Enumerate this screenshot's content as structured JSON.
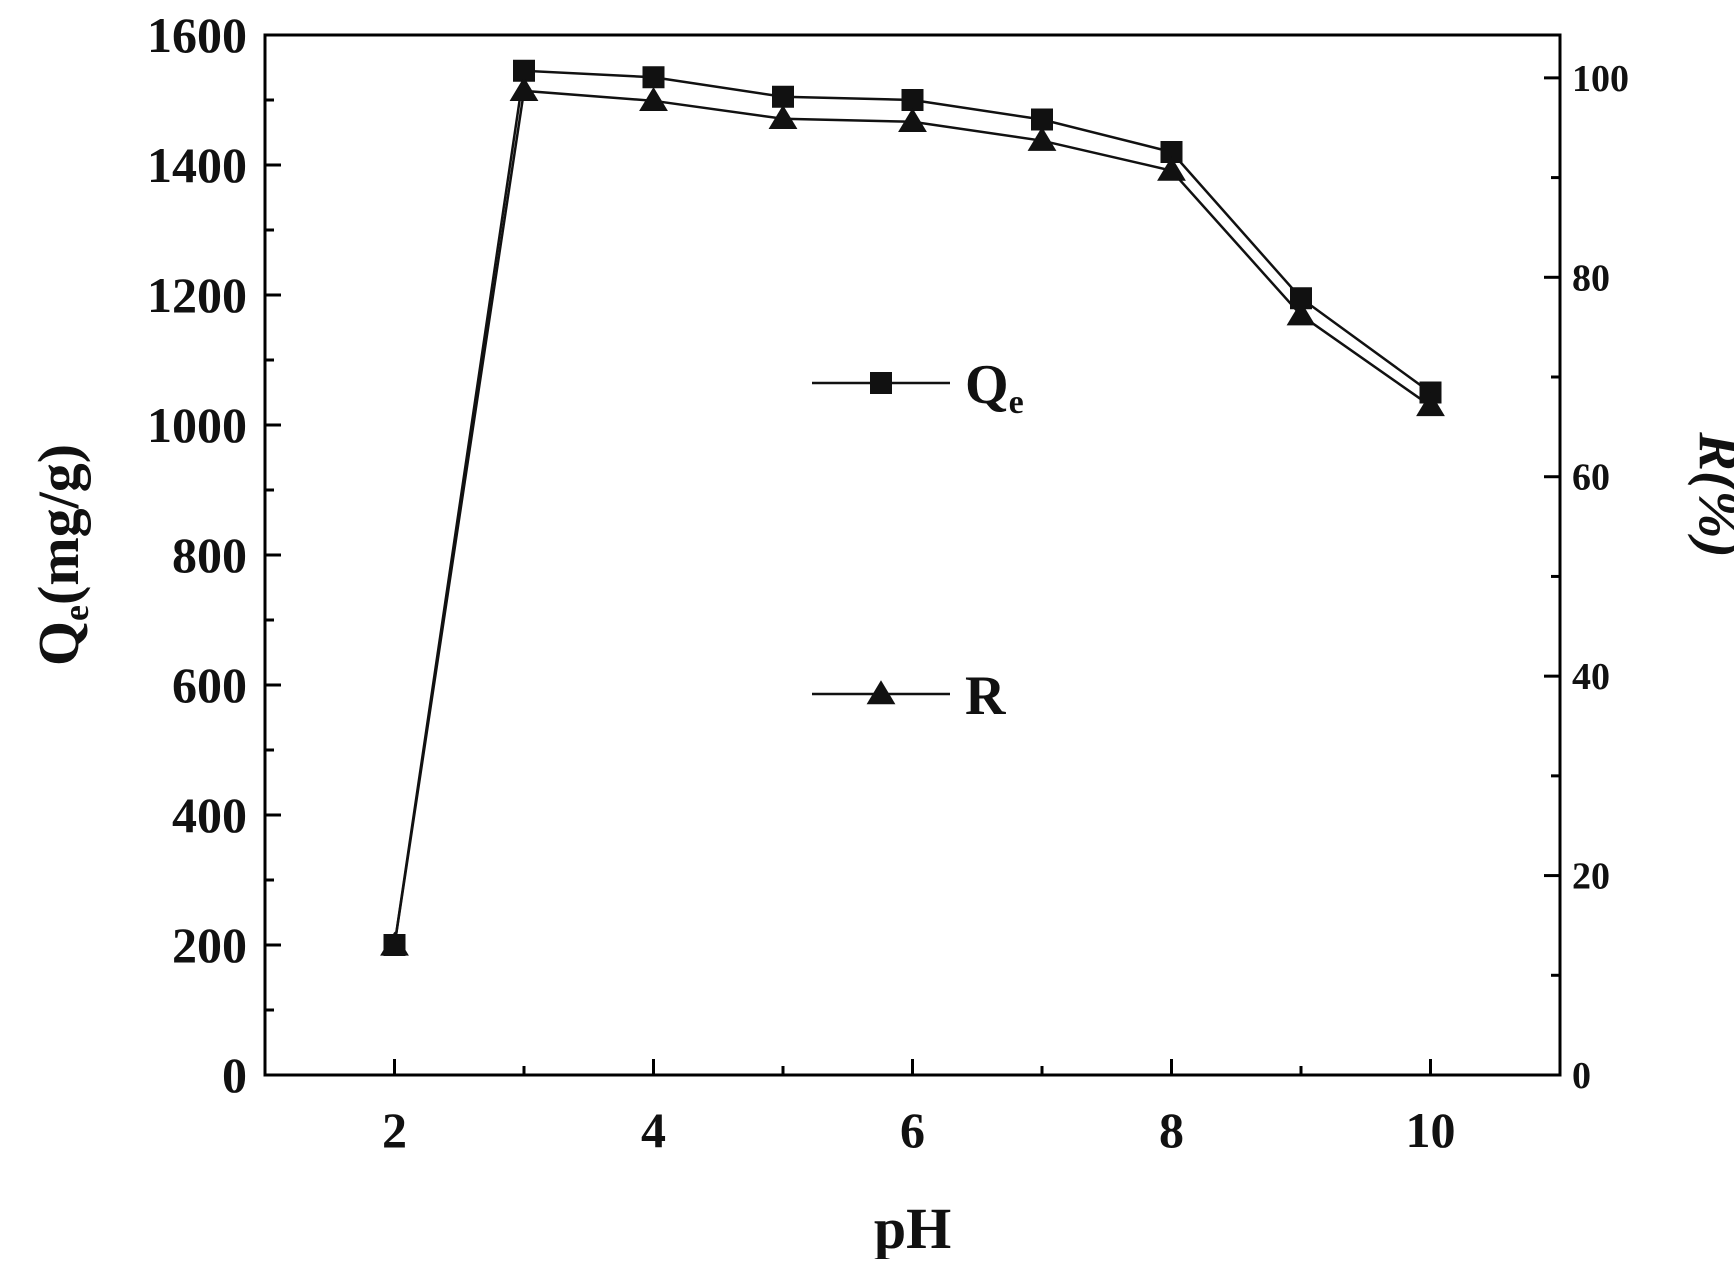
{
  "chart_data": {
    "type": "line",
    "xlabel": "pH",
    "ylabel_left": {
      "main": "Q",
      "sub": "e",
      "rest": "(mg/g)"
    },
    "ylabel_right": "R(%)",
    "x_ticks": [
      "2",
      "4",
      "6",
      "8",
      "10"
    ],
    "x_tick_values": [
      2,
      4,
      6,
      8,
      10
    ],
    "xlim": [
      1,
      11
    ],
    "y_left_ticks": [
      "0",
      "200",
      "400",
      "600",
      "800",
      "1000",
      "1200",
      "1400",
      "1600"
    ],
    "y_left_tick_values": [
      0,
      200,
      400,
      600,
      800,
      1000,
      1200,
      1400,
      1600
    ],
    "ylim_left": [
      0,
      1600
    ],
    "y_right_ticks": [
      "0",
      "20",
      "40",
      "60",
      "80",
      "100"
    ],
    "y_right_tick_values": [
      0,
      20,
      40,
      60,
      80,
      100
    ],
    "ylim_right": [
      0,
      104.3
    ],
    "x": [
      2,
      3,
      4,
      5,
      6,
      7,
      8,
      9,
      10
    ],
    "series": [
      {
        "name": "Qe",
        "axis": "left",
        "marker": "square",
        "values": [
          200,
          1545,
          1535,
          1505,
          1500,
          1470,
          1420,
          1195,
          1050
        ]
      },
      {
        "name": "R",
        "axis": "right",
        "marker": "triangle",
        "values": [
          13,
          98.7,
          97.7,
          95.9,
          95.6,
          93.7,
          90.7,
          76.2,
          67.1
        ]
      }
    ],
    "legend": {
      "placement": "center",
      "entries": [
        {
          "main": "Q",
          "sub": "e",
          "marker": "square"
        },
        {
          "main": "R",
          "sub": "",
          "marker": "triangle"
        }
      ]
    },
    "grid": false,
    "colors": {
      "line": "#111111",
      "marker": "#111111",
      "axis": "#000000",
      "background": "#ffffff"
    }
  }
}
